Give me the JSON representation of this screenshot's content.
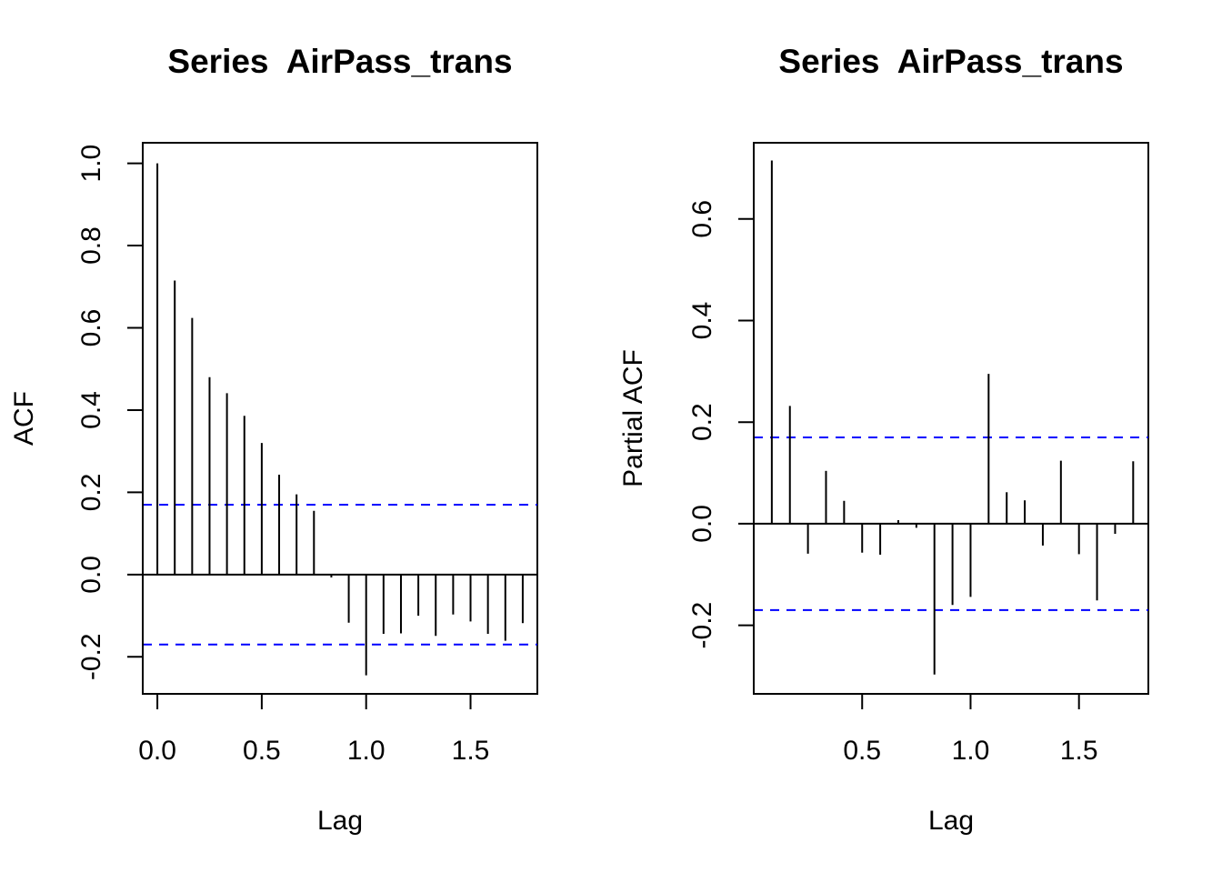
{
  "chart_data": [
    {
      "type": "bar",
      "subtype": "acf-lollipop",
      "title": "Series  AirPass_trans",
      "xlabel": "Lag",
      "ylabel": "ACF",
      "xlim": [
        -0.07,
        1.82
      ],
      "ylim": [
        -0.29,
        1.05
      ],
      "xticks": [
        0.0,
        0.5,
        1.0,
        1.5
      ],
      "xtick_labels": [
        "0.0",
        "0.5",
        "1.0",
        "1.5"
      ],
      "yticks": [
        -0.2,
        0.0,
        0.2,
        0.4,
        0.6,
        0.8,
        1.0
      ],
      "ytick_labels": [
        "-0.2",
        "0.0",
        "0.2",
        "0.4",
        "0.6",
        "0.8",
        "1.0"
      ],
      "confidence_bound": 0.17,
      "confidence_color": "#0000ff",
      "grid": false,
      "lags": [
        0.0,
        0.0833,
        0.1667,
        0.25,
        0.3333,
        0.4167,
        0.5,
        0.5833,
        0.6667,
        0.75,
        0.8333,
        0.9167,
        1.0,
        1.0833,
        1.1667,
        1.25,
        1.3333,
        1.4167,
        1.5,
        1.5833,
        1.6667,
        1.75
      ],
      "values": [
        1.0,
        0.715,
        0.624,
        0.48,
        0.441,
        0.386,
        0.32,
        0.243,
        0.195,
        0.155,
        -0.007,
        -0.117,
        -0.245,
        -0.144,
        -0.143,
        -0.1,
        -0.149,
        -0.097,
        -0.114,
        -0.144,
        -0.161,
        -0.118
      ]
    },
    {
      "type": "bar",
      "subtype": "pacf-lollipop",
      "title": "Series  AirPass_trans",
      "xlabel": "Lag",
      "ylabel": "Partial ACF",
      "xlim": [
        0.0,
        1.82
      ],
      "ylim": [
        -0.335,
        0.75
      ],
      "xticks": [
        0.5,
        1.0,
        1.5
      ],
      "xtick_labels": [
        "0.5",
        "1.0",
        "1.5"
      ],
      "yticks": [
        -0.2,
        0.0,
        0.2,
        0.4,
        0.6
      ],
      "ytick_labels": [
        "-0.2",
        "0.0",
        "0.2",
        "0.4",
        "0.6"
      ],
      "confidence_bound": 0.17,
      "confidence_color": "#0000ff",
      "grid": false,
      "lags": [
        0.0833,
        0.1667,
        0.25,
        0.3333,
        0.4167,
        0.5,
        0.5833,
        0.6667,
        0.75,
        0.8333,
        0.9167,
        1.0,
        1.0833,
        1.1667,
        1.25,
        1.3333,
        1.4167,
        1.5,
        1.5833,
        1.6667,
        1.75
      ],
      "values": [
        0.715,
        0.232,
        -0.059,
        0.104,
        0.045,
        -0.057,
        -0.061,
        0.007,
        -0.008,
        -0.297,
        -0.16,
        -0.144,
        0.295,
        0.062,
        0.046,
        -0.043,
        0.124,
        -0.06,
        -0.151,
        -0.02,
        0.123
      ]
    }
  ]
}
